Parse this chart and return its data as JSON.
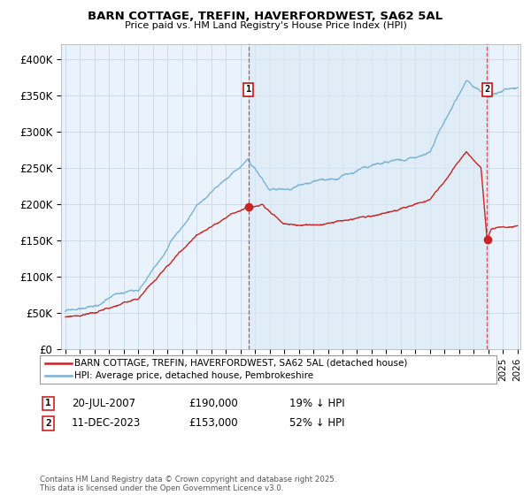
{
  "title": "BARN COTTAGE, TREFIN, HAVERFORDWEST, SA62 5AL",
  "subtitle": "Price paid vs. HM Land Registry's House Price Index (HPI)",
  "hpi_color": "#7ab3d4",
  "price_color": "#cc2222",
  "dashed_line_color": "#cc3333",
  "background_color": "#ffffff",
  "grid_color": "#c8d8e8",
  "plot_bg_color": "#eaf3fb",
  "ylim": [
    0,
    420000
  ],
  "yticks": [
    0,
    50000,
    100000,
    150000,
    200000,
    250000,
    300000,
    350000,
    400000
  ],
  "ytick_labels": [
    "£0",
    "£50K",
    "£100K",
    "£150K",
    "£200K",
    "£250K",
    "£300K",
    "£350K",
    "£400K"
  ],
  "legend_label_price": "BARN COTTAGE, TREFIN, HAVERFORDWEST, SA62 5AL (detached house)",
  "legend_label_hpi": "HPI: Average price, detached house, Pembrokeshire",
  "sale1_date": "20-JUL-2007",
  "sale1_price": "£190,000",
  "sale1_hpi": "19% ↓ HPI",
  "sale1_label": "1",
  "sale1_year": 2007.55,
  "sale1_value": 190000,
  "sale2_date": "11-DEC-2023",
  "sale2_price": "£153,000",
  "sale2_hpi": "52% ↓ HPI",
  "sale2_label": "2",
  "sale2_year": 2023.92,
  "sale2_value": 153000,
  "footer": "Contains HM Land Registry data © Crown copyright and database right 2025.\nThis data is licensed under the Open Government Licence v3.0.",
  "xlim_left": 1995.0,
  "xlim_right": 2026.2
}
